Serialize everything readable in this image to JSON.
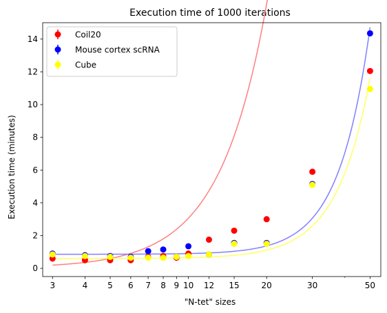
{
  "chart_data": {
    "type": "scatter",
    "title": "Execution time of 1000 iterations",
    "xlabel": "\"N-tet\" sizes",
    "ylabel": "Execution time (minutes)",
    "xscale": "log",
    "xlim": [
      2.75,
      55
    ],
    "ylim": [
      -0.5,
      15
    ],
    "x_ticks": [
      3,
      4,
      5,
      6,
      7,
      8,
      9,
      10,
      12,
      15,
      20,
      30,
      50
    ],
    "y_ticks": [
      0,
      2,
      4,
      6,
      8,
      10,
      12,
      14
    ],
    "legend_position": "top-left",
    "grid": false,
    "series": [
      {
        "name": "Coil20",
        "color": "#ff0000",
        "line_color": "#ff7f7f",
        "x": [
          3,
          4,
          5,
          6,
          7,
          8,
          9,
          10,
          12,
          15,
          20,
          30,
          50
        ],
        "y": [
          0.6,
          0.5,
          0.5,
          0.5,
          0.7,
          0.75,
          0.65,
          0.9,
          1.75,
          2.3,
          3.0,
          5.9,
          12.05
        ],
        "fit": {
          "a": 0.03,
          "b": 0.0118,
          "c": 2.41
        }
      },
      {
        "name": "Mouse cortex scRNA",
        "color": "#0000ff",
        "line_color": "#7f7fff",
        "x": [
          3,
          4,
          5,
          6,
          7,
          8,
          9,
          10,
          12,
          15,
          20,
          30,
          50
        ],
        "y": [
          0.9,
          0.8,
          0.75,
          0.7,
          1.05,
          1.15,
          0.7,
          1.35,
          0.85,
          1.55,
          1.55,
          5.15,
          14.35
        ],
        "fit": {
          "a": 0.86,
          "b": 1.06e-05,
          "c": 3.6
        }
      },
      {
        "name": "Cube",
        "color": "#ffff00",
        "line_color": "#ffff66",
        "x": [
          3,
          4,
          5,
          6,
          7,
          8,
          9,
          10,
          12,
          15,
          20,
          30,
          50
        ],
        "y": [
          0.85,
          0.75,
          0.7,
          0.65,
          0.65,
          0.65,
          0.7,
          0.75,
          0.85,
          1.5,
          1.5,
          5.1,
          10.95
        ],
        "fit": {
          "a": 0.6,
          "b": 2.24e-05,
          "c": 3.35
        }
      }
    ]
  }
}
